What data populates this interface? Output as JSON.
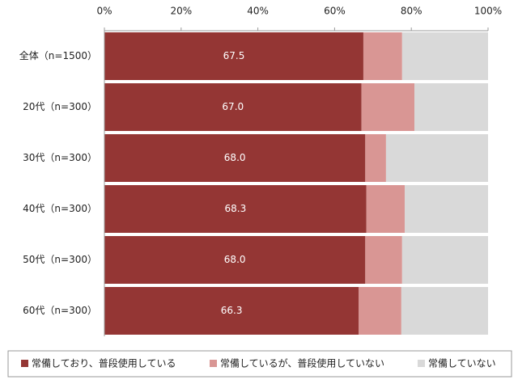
{
  "chart_data": {
    "type": "stacked-bar-horizontal",
    "categories": [
      "全体（n=1500）",
      "20代（n=300）",
      "30代（n=300）",
      "40代（n=300）",
      "50代（n=300）",
      "60代（n=300）"
    ],
    "series": [
      {
        "name": "常備しており、普段使用している",
        "color": "#943634",
        "values": [
          67.5,
          67.0,
          68.0,
          68.3,
          68.0,
          66.3
        ],
        "value_labels": [
          "67.5",
          "67.0",
          "68.0",
          "68.3",
          "68.0",
          "66.3"
        ]
      },
      {
        "name": "常備しているが、普段使用していない",
        "color": "#d99694",
        "values": [
          10.1,
          13.8,
          5.4,
          10.0,
          9.6,
          11.1
        ]
      },
      {
        "name": "常備していない",
        "color": "#d9d9d9",
        "values": [
          22.4,
          19.2,
          26.6,
          21.7,
          22.4,
          22.6
        ]
      }
    ],
    "xlim": [
      0,
      100
    ],
    "xticks": [
      {
        "value": 0,
        "label": "0%"
      },
      {
        "value": 20,
        "label": "20%"
      },
      {
        "value": 40,
        "label": "40%"
      },
      {
        "value": 60,
        "label": "60%"
      },
      {
        "value": 80,
        "label": "80%"
      },
      {
        "value": 100,
        "label": "100%"
      }
    ]
  }
}
